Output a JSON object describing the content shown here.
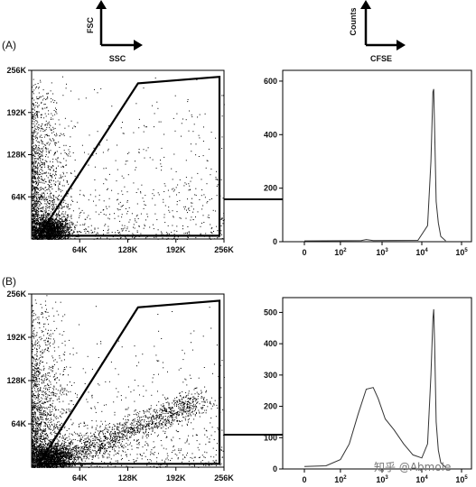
{
  "legend_keys": [
    {
      "y_label": "FSC",
      "x_label": "SSC"
    },
    {
      "y_label": "Counts",
      "x_label": "CFSE"
    }
  ],
  "watermark": "知乎 @Abmole",
  "chart_data": [
    {
      "panel": "(A)",
      "type": "scatter",
      "x_ticks": [
        "64K",
        "128K",
        "192K",
        "256K"
      ],
      "y_ticks": [
        "64K",
        "128K",
        "192K",
        "256K"
      ],
      "xlim": [
        0,
        262144
      ],
      "ylim": [
        0,
        262144
      ],
      "gate_polygon": [
        [
          10000,
          5000
        ],
        [
          145000,
          242000
        ],
        [
          256000,
          252000
        ],
        [
          256000,
          5000
        ]
      ],
      "density": "dense cluster near origin (SSC ~30K, FSC ~20K), sparse spread across plot"
    },
    {
      "panel": "(A)",
      "type": "line",
      "scale_x": "log",
      "x_ticks": [
        "0",
        "10^2",
        "10^3",
        "10^4",
        "10^5"
      ],
      "y_ticks": [
        0,
        200,
        400,
        600
      ],
      "ylim": [
        0,
        620
      ],
      "series": [
        {
          "x": [
            0,
            300,
            400,
            600,
            8000,
            14000,
            17000,
            19000,
            20000,
            21000,
            23000,
            26000,
            30000,
            40000
          ],
          "values": [
            3,
            4,
            8,
            4,
            5,
            60,
            300,
            560,
            570,
            420,
            150,
            70,
            20,
            3
          ]
        }
      ]
    },
    {
      "panel": "(B)",
      "type": "scatter",
      "x_ticks": [
        "64K",
        "128K",
        "192K",
        "256K"
      ],
      "y_ticks": [
        "64K",
        "128K",
        "192K",
        "256K"
      ],
      "xlim": [
        0,
        262144
      ],
      "ylim": [
        0,
        262144
      ],
      "gate_polygon": [
        [
          10000,
          5000
        ],
        [
          145000,
          242000
        ],
        [
          256000,
          252000
        ],
        [
          256000,
          5000
        ]
      ],
      "density": "dense cluster near origin plus diagonal band toward high SSC"
    },
    {
      "panel": "(B)",
      "type": "line",
      "scale_x": "log",
      "x_ticks": [
        "0",
        "10^2",
        "10^3",
        "10^4",
        "10^5"
      ],
      "y_ticks": [
        0,
        100,
        200,
        300,
        400,
        500
      ],
      "ylim": [
        0,
        530
      ],
      "series": [
        {
          "x": [
            0,
            60,
            100,
            150,
            250,
            400,
            600,
            800,
            1200,
            2000,
            3500,
            6000,
            10000,
            14000,
            17000,
            19000,
            20000,
            21000,
            23000,
            26000,
            30000,
            40000
          ],
          "values": [
            8,
            10,
            30,
            80,
            175,
            255,
            260,
            225,
            160,
            125,
            80,
            45,
            35,
            80,
            300,
            480,
            510,
            400,
            150,
            60,
            20,
            5
          ]
        }
      ]
    }
  ]
}
